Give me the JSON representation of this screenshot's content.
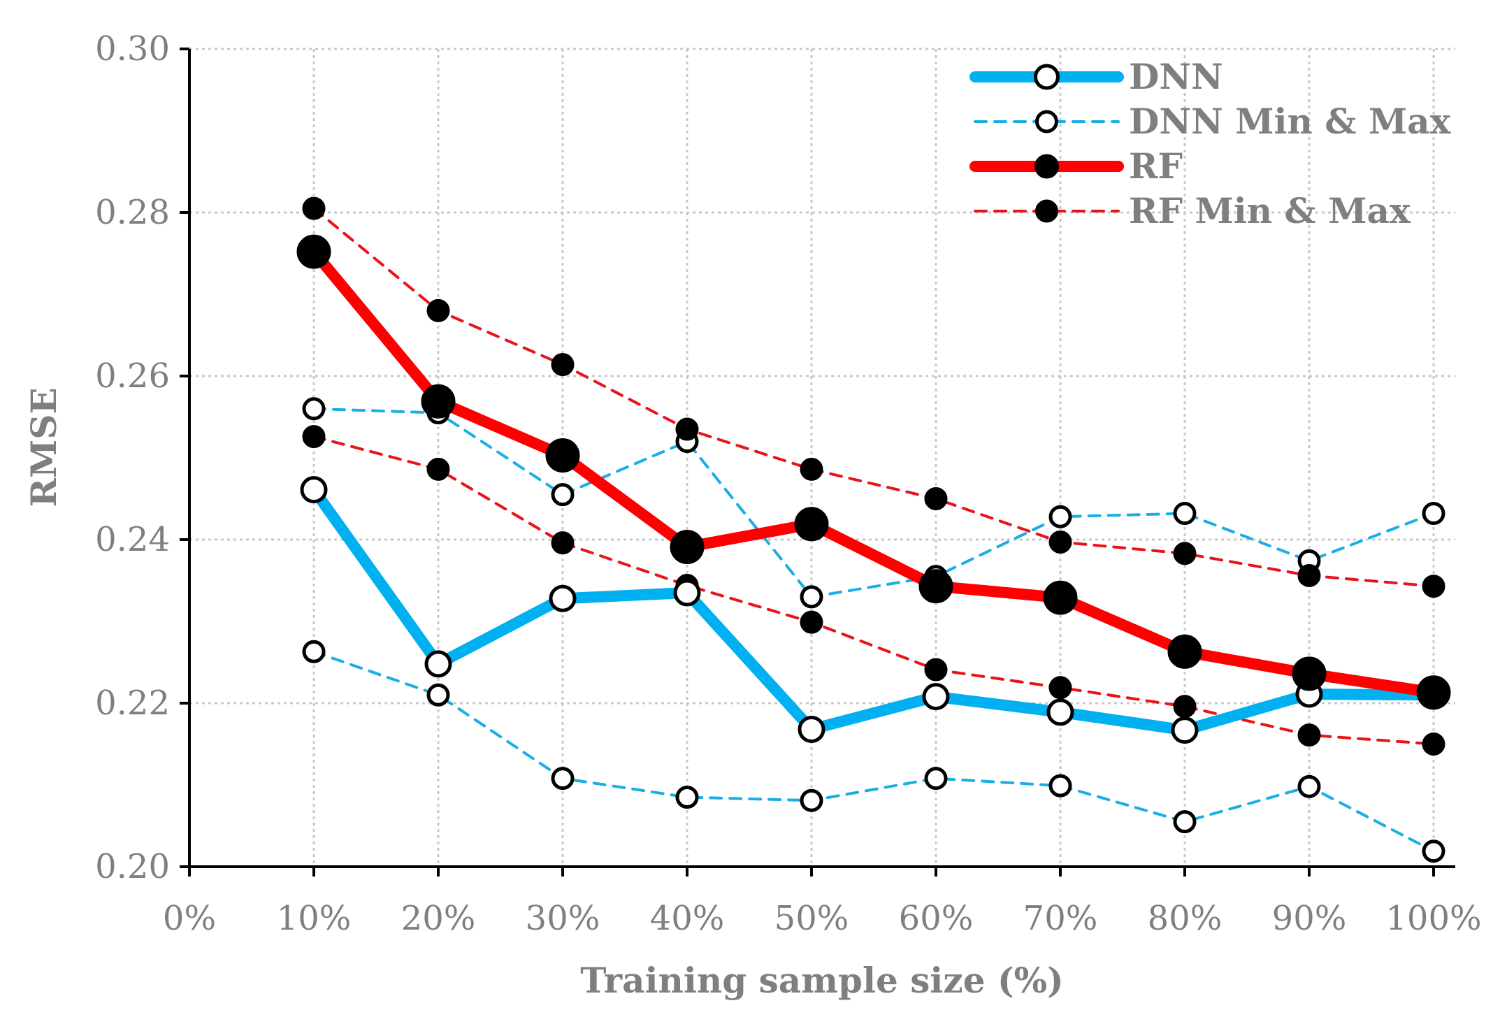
{
  "chart_data": {
    "type": "line",
    "xlabel": "Training sample size (%)",
    "ylabel": "RMSE",
    "xlim": [
      0,
      100
    ],
    "ylim": [
      0.2,
      0.3
    ],
    "x_ticks": [
      "0%",
      "10%",
      "20%",
      "30%",
      "40%",
      "50%",
      "60%",
      "70%",
      "80%",
      "90%",
      "100%"
    ],
    "y_ticks": [
      "0.20",
      "0.22",
      "0.24",
      "0.26",
      "0.28",
      "0.30"
    ],
    "x": [
      10,
      20,
      30,
      40,
      50,
      60,
      70,
      80,
      90,
      100
    ],
    "grid": true,
    "legend_position": "top-right",
    "series": [
      {
        "name": "DNN Min & Max",
        "style": "dashed-open",
        "color": "#1aaee5",
        "values": [
          0.256,
          0.2555,
          0.2455,
          0.252,
          0.233,
          0.2355,
          0.2428,
          0.2432,
          0.2374,
          0.2432
        ]
      },
      {
        "name": "DNN Min & Max",
        "style": "dashed-open",
        "color": "#1aaee5",
        "values": [
          0.2263,
          0.221,
          0.2108,
          0.2085,
          0.2081,
          0.2108,
          0.2099,
          0.2055,
          0.2098,
          0.2019
        ]
      },
      {
        "name": "RF Min & Max",
        "style": "dashed-filled",
        "color": "#e8131b",
        "values": [
          0.2805,
          0.268,
          0.2614,
          0.2535,
          0.2486,
          0.245,
          0.2397,
          0.2383,
          0.2356,
          0.2343
        ]
      },
      {
        "name": "RF Min & Max",
        "style": "dashed-filled",
        "color": "#e8131b",
        "values": [
          0.2526,
          0.2486,
          0.2396,
          0.2344,
          0.2299,
          0.2241,
          0.2219,
          0.2196,
          0.2161,
          0.215
        ]
      },
      {
        "name": "DNN",
        "style": "solid-open",
        "color": "#00b0f0",
        "values": [
          0.2461,
          0.2248,
          0.2328,
          0.2335,
          0.2168,
          0.2208,
          0.2189,
          0.2167,
          0.2211,
          0.221
        ]
      },
      {
        "name": "RF",
        "style": "solid-filled",
        "color": "#ff0000",
        "values": [
          0.2752,
          0.2569,
          0.2503,
          0.2391,
          0.2419,
          0.2343,
          0.2329,
          0.2263,
          0.2236,
          0.2213
        ]
      }
    ],
    "legend": [
      {
        "label": "DNN",
        "style": "solid-open",
        "color": "#00b0f0"
      },
      {
        "label": "DNN Min & Max",
        "style": "dashed-open",
        "color": "#1aaee5"
      },
      {
        "label": "RF",
        "style": "solid-filled",
        "color": "#ff0000"
      },
      {
        "label": "RF Min & Max",
        "style": "dashed-filled",
        "color": "#e8131b"
      }
    ]
  }
}
